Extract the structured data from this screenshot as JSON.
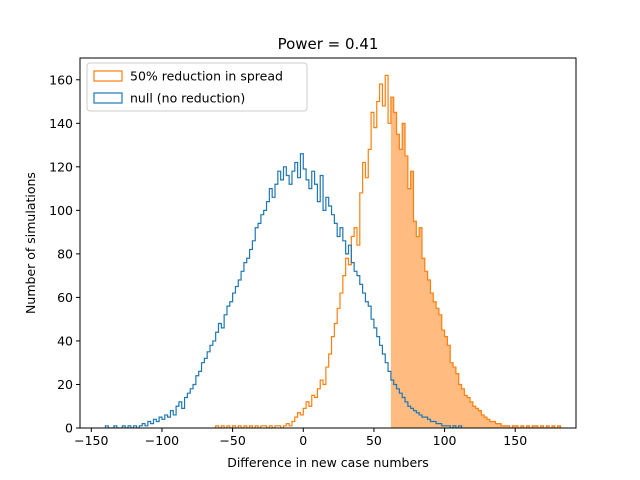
{
  "chart_data": {
    "type": "histogram-step",
    "title": "Power = 0.41",
    "xlabel": "Difference in new case numbers",
    "ylabel": "Number of simulations",
    "xlim": [
      -158,
      193
    ],
    "ylim": [
      0,
      170
    ],
    "xticks": [
      -150,
      -100,
      -50,
      0,
      50,
      100,
      150
    ],
    "yticks": [
      0,
      20,
      40,
      60,
      80,
      100,
      120,
      140,
      160
    ],
    "grid": false,
    "legend_position": "top-left",
    "threshold": 62,
    "series": [
      {
        "name": "50% reduction in spread",
        "color": "#ff7f0e",
        "fill_color": "#ffbb80",
        "shaded_above_threshold": true,
        "bin_width": 2,
        "bins": [
          [
            -62,
            1
          ],
          [
            -60,
            0
          ],
          [
            -58,
            1
          ],
          [
            -56,
            0
          ],
          [
            -54,
            1
          ],
          [
            -52,
            0
          ],
          [
            -50,
            1
          ],
          [
            -48,
            0
          ],
          [
            -46,
            1
          ],
          [
            -44,
            0
          ],
          [
            -42,
            1
          ],
          [
            -40,
            0
          ],
          [
            -38,
            1
          ],
          [
            -36,
            0
          ],
          [
            -34,
            1
          ],
          [
            -32,
            0
          ],
          [
            -30,
            1
          ],
          [
            -28,
            1
          ],
          [
            -26,
            0
          ],
          [
            -24,
            1
          ],
          [
            -22,
            0
          ],
          [
            -20,
            1
          ],
          [
            -18,
            1
          ],
          [
            -16,
            0
          ],
          [
            -14,
            1
          ],
          [
            -12,
            2
          ],
          [
            -10,
            1
          ],
          [
            -8,
            3
          ],
          [
            -6,
            5
          ],
          [
            -4,
            7
          ],
          [
            -2,
            6
          ],
          [
            0,
            9
          ],
          [
            2,
            12
          ],
          [
            4,
            10
          ],
          [
            6,
            15
          ],
          [
            8,
            14
          ],
          [
            10,
            18
          ],
          [
            12,
            22
          ],
          [
            14,
            20
          ],
          [
            16,
            28
          ],
          [
            18,
            34
          ],
          [
            20,
            42
          ],
          [
            22,
            48
          ],
          [
            24,
            55
          ],
          [
            26,
            62
          ],
          [
            28,
            70
          ],
          [
            30,
            78
          ],
          [
            32,
            75
          ],
          [
            34,
            88
          ],
          [
            36,
            92
          ],
          [
            38,
            84
          ],
          [
            40,
            108
          ],
          [
            42,
            122
          ],
          [
            44,
            115
          ],
          [
            46,
            128
          ],
          [
            48,
            145
          ],
          [
            50,
            138
          ],
          [
            52,
            150
          ],
          [
            54,
            158
          ],
          [
            56,
            148
          ],
          [
            58,
            162
          ],
          [
            60,
            140
          ],
          [
            62,
            152
          ],
          [
            64,
            145
          ],
          [
            66,
            135
          ],
          [
            68,
            128
          ],
          [
            70,
            140
          ],
          [
            72,
            125
          ],
          [
            74,
            110
          ],
          [
            76,
            118
          ],
          [
            78,
            95
          ],
          [
            80,
            88
          ],
          [
            82,
            92
          ],
          [
            84,
            78
          ],
          [
            86,
            72
          ],
          [
            88,
            68
          ],
          [
            90,
            62
          ],
          [
            92,
            58
          ],
          [
            94,
            55
          ],
          [
            96,
            52
          ],
          [
            98,
            45
          ],
          [
            100,
            42
          ],
          [
            102,
            38
          ],
          [
            104,
            30
          ],
          [
            106,
            28
          ],
          [
            108,
            25
          ],
          [
            110,
            20
          ],
          [
            112,
            18
          ],
          [
            114,
            15
          ],
          [
            116,
            14
          ],
          [
            118,
            12
          ],
          [
            120,
            10
          ],
          [
            122,
            9
          ],
          [
            124,
            8
          ],
          [
            126,
            6
          ],
          [
            128,
            5
          ],
          [
            130,
            4
          ],
          [
            132,
            3
          ],
          [
            134,
            3
          ],
          [
            136,
            2
          ],
          [
            138,
            2
          ],
          [
            140,
            1
          ],
          [
            142,
            1
          ],
          [
            144,
            1
          ],
          [
            146,
            0
          ],
          [
            148,
            1
          ],
          [
            150,
            1
          ],
          [
            152,
            0
          ],
          [
            154,
            1
          ],
          [
            156,
            0
          ],
          [
            158,
            1
          ],
          [
            160,
            0
          ],
          [
            162,
            1
          ],
          [
            164,
            1
          ],
          [
            166,
            0
          ],
          [
            168,
            1
          ],
          [
            170,
            0
          ],
          [
            172,
            1
          ],
          [
            174,
            0
          ],
          [
            176,
            1
          ],
          [
            178,
            0
          ],
          [
            180,
            1
          ]
        ]
      },
      {
        "name": "null (no reduction)",
        "color": "#1f77b4",
        "bin_width": 2,
        "bins": [
          [
            -140,
            1
          ],
          [
            -138,
            0
          ],
          [
            -136,
            0
          ],
          [
            -134,
            1
          ],
          [
            -132,
            0
          ],
          [
            -130,
            0
          ],
          [
            -128,
            1
          ],
          [
            -126,
            0
          ],
          [
            -124,
            1
          ],
          [
            -122,
            0
          ],
          [
            -120,
            1
          ],
          [
            -118,
            0
          ],
          [
            -116,
            1
          ],
          [
            -114,
            2
          ],
          [
            -112,
            1
          ],
          [
            -110,
            3
          ],
          [
            -108,
            2
          ],
          [
            -106,
            4
          ],
          [
            -104,
            3
          ],
          [
            -102,
            5
          ],
          [
            -100,
            4
          ],
          [
            -98,
            6
          ],
          [
            -96,
            5
          ],
          [
            -94,
            8
          ],
          [
            -92,
            6
          ],
          [
            -90,
            10
          ],
          [
            -88,
            12
          ],
          [
            -86,
            9
          ],
          [
            -84,
            14
          ],
          [
            -82,
            16
          ],
          [
            -80,
            18
          ],
          [
            -78,
            20
          ],
          [
            -76,
            24
          ],
          [
            -74,
            26
          ],
          [
            -72,
            30
          ],
          [
            -70,
            32
          ],
          [
            -68,
            35
          ],
          [
            -66,
            38
          ],
          [
            -64,
            40
          ],
          [
            -62,
            44
          ],
          [
            -60,
            48
          ],
          [
            -58,
            46
          ],
          [
            -56,
            52
          ],
          [
            -54,
            56
          ],
          [
            -52,
            58
          ],
          [
            -50,
            62
          ],
          [
            -48,
            65
          ],
          [
            -46,
            68
          ],
          [
            -44,
            72
          ],
          [
            -42,
            76
          ],
          [
            -40,
            78
          ],
          [
            -38,
            82
          ],
          [
            -36,
            86
          ],
          [
            -34,
            92
          ],
          [
            -32,
            94
          ],
          [
            -30,
            98
          ],
          [
            -28,
            100
          ],
          [
            -26,
            104
          ],
          [
            -24,
            110
          ],
          [
            -22,
            106
          ],
          [
            -20,
            112
          ],
          [
            -18,
            118
          ],
          [
            -16,
            114
          ],
          [
            -14,
            120
          ],
          [
            -12,
            116
          ],
          [
            -10,
            112
          ],
          [
            -8,
            118
          ],
          [
            -6,
            122
          ],
          [
            -4,
            115
          ],
          [
            -2,
            126
          ],
          [
            0,
            119
          ],
          [
            2,
            114
          ],
          [
            4,
            110
          ],
          [
            6,
            118
          ],
          [
            8,
            112
          ],
          [
            10,
            104
          ],
          [
            12,
            116
          ],
          [
            14,
            100
          ],
          [
            16,
            106
          ],
          [
            18,
            102
          ],
          [
            20,
            98
          ],
          [
            22,
            94
          ],
          [
            24,
            88
          ],
          [
            26,
            92
          ],
          [
            28,
            86
          ],
          [
            30,
            80
          ],
          [
            32,
            84
          ],
          [
            34,
            76
          ],
          [
            36,
            72
          ],
          [
            38,
            70
          ],
          [
            40,
            66
          ],
          [
            42,
            62
          ],
          [
            44,
            58
          ],
          [
            46,
            56
          ],
          [
            48,
            50
          ],
          [
            50,
            46
          ],
          [
            52,
            42
          ],
          [
            54,
            38
          ],
          [
            56,
            34
          ],
          [
            58,
            30
          ],
          [
            60,
            26
          ],
          [
            62,
            22
          ],
          [
            64,
            20
          ],
          [
            66,
            18
          ],
          [
            68,
            16
          ],
          [
            70,
            14
          ],
          [
            72,
            12
          ],
          [
            74,
            10
          ],
          [
            76,
            9
          ],
          [
            78,
            8
          ],
          [
            80,
            7
          ],
          [
            82,
            6
          ],
          [
            84,
            5
          ],
          [
            86,
            5
          ],
          [
            88,
            4
          ],
          [
            90,
            3
          ],
          [
            92,
            3
          ],
          [
            94,
            2
          ],
          [
            96,
            2
          ],
          [
            98,
            1
          ],
          [
            100,
            1
          ],
          [
            102,
            1
          ],
          [
            104,
            0
          ],
          [
            106,
            1
          ],
          [
            108,
            0
          ],
          [
            110,
            1
          ]
        ]
      }
    ]
  }
}
